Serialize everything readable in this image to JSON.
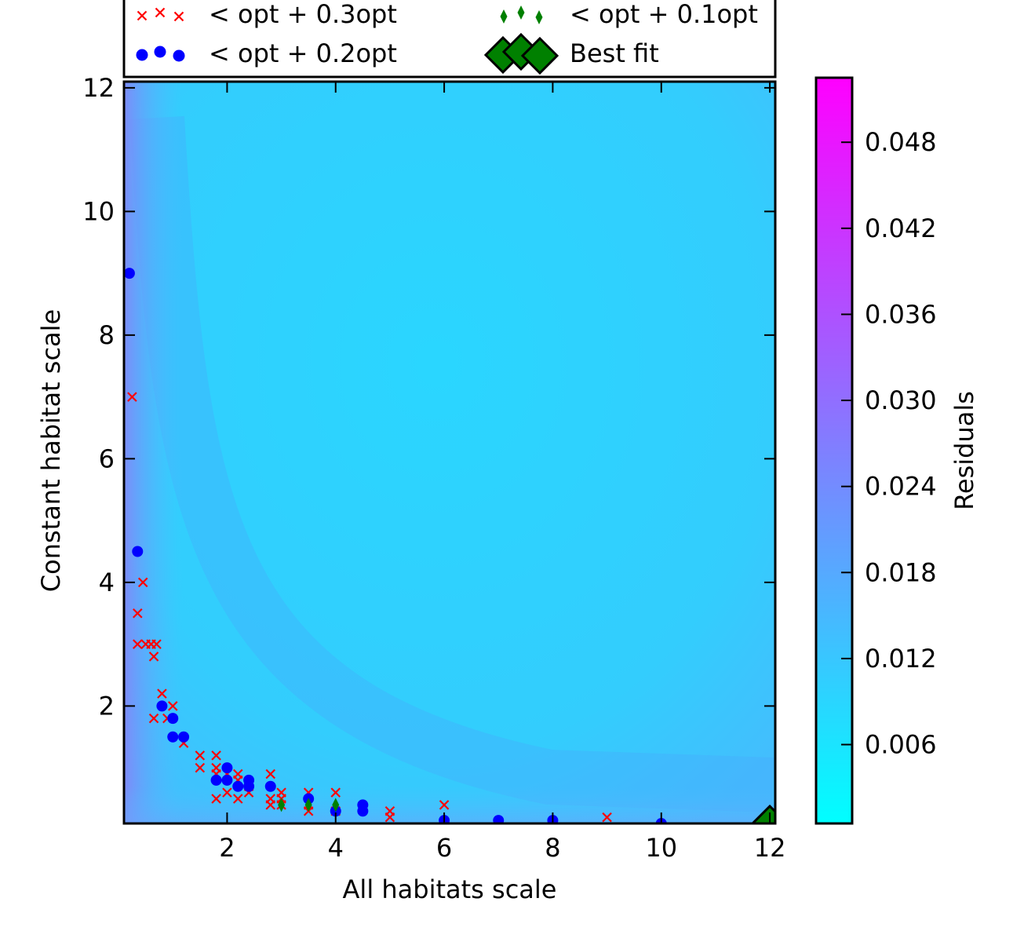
{
  "chart_data": {
    "type": "heatmap",
    "xlabel": "All habitats scale",
    "ylabel": "Constant habitat scale",
    "xlim": [
      0.1,
      12.1
    ],
    "ylim": [
      0.1,
      12.1
    ],
    "x_ticks": [
      2,
      4,
      6,
      8,
      10,
      12
    ],
    "y_ticks": [
      2,
      4,
      6,
      8,
      10,
      12
    ],
    "colorbar": {
      "label": "Residuals",
      "range": [
        0.0005,
        0.0525
      ],
      "ticks": [
        "0.006",
        "0.012",
        "0.018",
        "0.024",
        "0.030",
        "0.036",
        "0.042",
        "0.048"
      ],
      "colors": [
        "#00ffff",
        "#ff00ff"
      ]
    },
    "legend": [
      {
        "label": "< opt + 0.3opt",
        "marker": "x",
        "color": "#ff0000"
      },
      {
        "label": "< opt + 0.1opt",
        "marker": "thin_diamond",
        "color": "#008000"
      },
      {
        "label": "< opt + 0.2opt",
        "marker": "circle",
        "color": "#0000ff"
      },
      {
        "label": "Best fit",
        "marker": "diamond",
        "color": "#008000"
      }
    ],
    "series": [
      {
        "name": "< opt + 0.3opt",
        "points": [
          [
            0.25,
            7
          ],
          [
            0.45,
            4
          ],
          [
            0.35,
            3.5
          ],
          [
            0.35,
            3
          ],
          [
            0.5,
            3
          ],
          [
            0.6,
            3
          ],
          [
            0.7,
            3
          ],
          [
            0.65,
            2.8
          ],
          [
            0.8,
            2.2
          ],
          [
            1.0,
            2.0
          ],
          [
            0.65,
            1.8
          ],
          [
            0.9,
            1.8
          ],
          [
            1.2,
            1.4
          ],
          [
            1.5,
            1.2
          ],
          [
            1.8,
            1.2
          ],
          [
            1.5,
            1.0
          ],
          [
            1.8,
            1.0
          ],
          [
            1.8,
            0.9
          ],
          [
            2.0,
            0.9
          ],
          [
            2.2,
            0.9
          ],
          [
            2.2,
            0.8
          ],
          [
            2.4,
            0.7
          ],
          [
            2.8,
            0.9
          ],
          [
            2.0,
            0.6
          ],
          [
            2.4,
            0.6
          ],
          [
            1.8,
            0.5
          ],
          [
            2.2,
            0.5
          ],
          [
            2.8,
            0.5
          ],
          [
            3.0,
            0.6
          ],
          [
            3.0,
            0.5
          ],
          [
            3.5,
            0.6
          ],
          [
            4.0,
            0.6
          ],
          [
            2.8,
            0.4
          ],
          [
            3.5,
            0.4
          ],
          [
            3.0,
            0.4
          ],
          [
            3.5,
            0.3
          ],
          [
            4.0,
            0.3
          ],
          [
            5.0,
            0.3
          ],
          [
            6.0,
            0.4
          ],
          [
            5.0,
            0.2
          ],
          [
            9.0,
            0.2
          ]
        ]
      },
      {
        "name": "< opt + 0.2opt",
        "points": [
          [
            0.2,
            9
          ],
          [
            0.35,
            4.5
          ],
          [
            0.8,
            2.0
          ],
          [
            1.0,
            1.8
          ],
          [
            1.0,
            1.5
          ],
          [
            1.2,
            1.5
          ],
          [
            2.0,
            1.0
          ],
          [
            1.8,
            0.8
          ],
          [
            2.0,
            0.8
          ],
          [
            2.4,
            0.8
          ],
          [
            2.2,
            0.7
          ],
          [
            2.4,
            0.7
          ],
          [
            2.8,
            0.7
          ],
          [
            3.5,
            0.5
          ],
          [
            4.5,
            0.4
          ],
          [
            4.0,
            0.3
          ],
          [
            4.5,
            0.3
          ],
          [
            6.0,
            0.15
          ],
          [
            7.0,
            0.15
          ],
          [
            8.0,
            0.15
          ],
          [
            10.0,
            0.1
          ]
        ]
      },
      {
        "name": "< opt + 0.1opt",
        "points": [
          [
            3.0,
            0.4
          ],
          [
            3.5,
            0.4
          ],
          [
            4.0,
            0.4
          ]
        ]
      },
      {
        "name": "Best fit",
        "points": [
          [
            12.0,
            0.1
          ]
        ]
      }
    ]
  }
}
